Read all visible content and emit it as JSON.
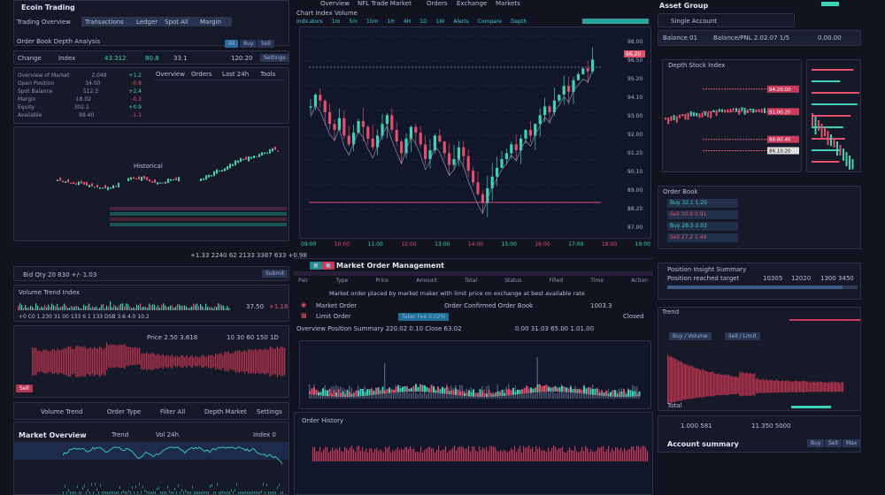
{
  "header": {
    "title": "Ecoin Trading",
    "subtitle": "Trading Overview",
    "menu": [
      "Overview",
      "NFL Trade Market",
      "Orders",
      "Exchange",
      "Markets"
    ]
  },
  "left": {
    "filters": [
      "Transactions",
      "Ledger",
      "Spot All",
      "Margin"
    ],
    "section_title": "Order Book Depth Analysis",
    "tabs": [
      "Overview",
      "Orders",
      "Last 24h",
      "Tools",
      "Settings"
    ],
    "stats": [
      "Change",
      "Index",
      "43.312",
      "80.8",
      "33.1",
      "120.20"
    ],
    "buttons": [
      "All",
      "Buy",
      "Sell"
    ],
    "table_rows": [
      {
        "name": "Overview of Market",
        "value": "2,048",
        "change": "+1.2"
      },
      {
        "name": "Open Position",
        "value": "34.50",
        "change": "-0.8"
      },
      {
        "name": "Spot Balance",
        "value": "512.3",
        "change": "+2.4"
      },
      {
        "name": "Margin",
        "value": "18.02",
        "change": "-0.3"
      },
      {
        "name": "Equity",
        "value": "302.1",
        "change": "+0.9"
      },
      {
        "name": "Available",
        "value": "88.40",
        "change": "-1.1"
      }
    ],
    "mini_chart_label": "Historical",
    "ticker": "+1.33 2240 62 2133 3387 633 +0.98",
    "input_label": "Bid Qty  20  830 +/- 1.03",
    "input_button": "Submit",
    "volume_title": "Volume Trend Index",
    "volume_value": "37.50",
    "volume_change": "+1.18",
    "volume_stats": "+0 C0  1.230  31  00  133  6 1 133 DSB  3.6 4.0  10.2",
    "red_chart_label": "Price 2.50 3.818",
    "red_chart_stats": "10 30 60 150 1D",
    "red_chart_badge": "Sell",
    "bottom_tabs": [
      "Volume Trend",
      "Order Type",
      "Filter All",
      "Depth Market",
      "Settings"
    ],
    "line_title": "Market Overview",
    "line_cols": [
      "Trend",
      "Vol 24h",
      "Index 0"
    ]
  },
  "center": {
    "chart_title": "Chart Index Volume",
    "toolbar": [
      "Indicators",
      "1m",
      "5m",
      "15m",
      "1H",
      "4H",
      "1D",
      "1W",
      "Alerts",
      "Compare",
      "Depth"
    ],
    "price_labels": [
      "98.00",
      "96.50",
      "95.20",
      "94.10",
      "93.00",
      "92.00",
      "91.20",
      "90.10",
      "89.00",
      "88.20",
      "87.00"
    ],
    "last_price": "96.20",
    "time_labels": [
      "09:00",
      "10:00",
      "11:00",
      "12:00",
      "13:00",
      "14:00",
      "15:00",
      "16:00",
      "17:00",
      "18:00",
      "19:00"
    ],
    "closes": [
      88,
      92,
      90,
      86,
      82,
      80,
      84,
      78,
      75,
      79,
      83,
      81,
      77,
      74,
      78,
      82,
      85,
      80,
      76,
      72,
      77,
      81,
      79,
      75,
      70,
      73,
      78,
      76,
      72,
      68,
      70,
      74,
      71,
      66,
      62,
      58,
      55,
      60,
      64,
      67,
      70,
      72,
      75,
      73,
      77,
      80,
      78,
      82,
      85,
      88,
      86,
      90,
      92,
      95,
      93,
      97,
      99,
      101,
      100,
      104
    ],
    "order_title": "Market Order Management",
    "order_headers": [
      "Pair",
      "Type",
      "Price",
      "Amount",
      "Total",
      "Status",
      "Filled",
      "Time",
      "Action"
    ],
    "order_note": "Market order placed by market maker with limit price on exchange at best available rate",
    "orders": [
      {
        "pair": "Market Order",
        "desc": "Order Confirmed Order Book",
        "value": "1003.3"
      },
      {
        "pair": "Limit Order",
        "desc": "Taker Fee 0.02%",
        "value": "Closed"
      }
    ],
    "volume_header": "Overview  Position Summary  220.02  0.10  Close 63.02",
    "volume_values": "0.00  31.03  65.00  1.01.00",
    "hist_title": "Order History"
  },
  "right": {
    "top": "Asset Group",
    "account": "Single Account",
    "summary": [
      "Balance  01",
      "Balance/PNL  2.02.07 1/5",
      "0.00.00"
    ],
    "depth_title": "Depth Stock Index",
    "price_tags": [
      "94.20.00",
      "91.00.20",
      "88.80.40",
      "86.10.20"
    ],
    "orderbook_title": "Order Book",
    "orderbook_rows": [
      "Buy  32.1  1.20",
      "Sell  30.8  0.91",
      "Buy  28.5  2.03",
      "Sell  27.2  1.44"
    ],
    "progress_title": "Position Insight Summary",
    "progress_label": "Position reached target",
    "progress_values": [
      "10305",
      "12020",
      "1300 3450"
    ],
    "progress": 0.92,
    "decay_title": "Trend",
    "decay_tabs": [
      "Buy / Volume",
      "Sell / Limit"
    ],
    "decay_badge": "Total",
    "footer": [
      "1.000 581",
      "11.350 5000"
    ],
    "footer_title": "Account summary",
    "footer_buttons": [
      "Buy",
      "Sell",
      "Max"
    ]
  },
  "colors": {
    "bg": "#11141f",
    "panel": "#161a28",
    "up": "#3fd3b5",
    "down": "#e2506d"
  }
}
